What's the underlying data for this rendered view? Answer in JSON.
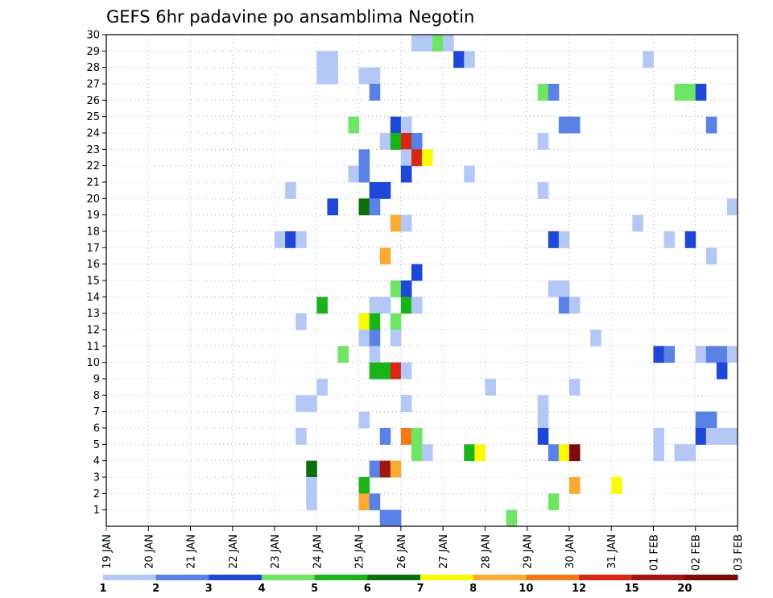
{
  "chart_data": {
    "type": "heatmap",
    "title": "GEFS 6hr padavine po ansamblima Negotin",
    "x_ticks": [
      "19 JAN",
      "20 JAN",
      "21 JAN",
      "22 JAN",
      "23 JAN",
      "24 JAN",
      "25 JAN",
      "26 JAN",
      "27 JAN",
      "28 JAN",
      "29 JAN",
      "30 JAN",
      "31 JAN",
      "01 FEB",
      "02 FEB",
      "03 FEB"
    ],
    "y_ticks": [
      "1",
      "2",
      "3",
      "4",
      "5",
      "6",
      "7",
      "8",
      "9",
      "10",
      "11",
      "12",
      "13",
      "14",
      "15",
      "16",
      "17",
      "18",
      "19",
      "20",
      "21",
      "22",
      "23",
      "24",
      "25",
      "26",
      "27",
      "28",
      "29",
      "30"
    ],
    "x_unit": "6-hour step (0 = 19 JAN 00Z)",
    "y_unit": "ensemble member",
    "xlim": [
      0,
      60
    ],
    "ylim": [
      0,
      30
    ],
    "grid": true,
    "legend": {
      "placement": "bottom",
      "labels": [
        "1",
        "2",
        "3",
        "4",
        "5",
        "6",
        "7",
        "8",
        "10",
        "12",
        "15",
        "20"
      ],
      "colors": [
        "#b4c8f5",
        "#5a82e6",
        "#1e46d7",
        "#6ee664",
        "#19b419",
        "#0a6e0a",
        "#fafa00",
        "#faaa32",
        "#f57814",
        "#d72814",
        "#a01414",
        "#7d0a0a"
      ]
    },
    "cells": [
      {
        "m": 30,
        "t": 29,
        "c": 0
      },
      {
        "m": 30,
        "t": 30,
        "c": 0
      },
      {
        "m": 30,
        "t": 31,
        "c": 3
      },
      {
        "m": 30,
        "t": 32,
        "c": 0
      },
      {
        "m": 29,
        "t": 20,
        "c": 0
      },
      {
        "m": 29,
        "t": 21,
        "c": 0
      },
      {
        "m": 29,
        "t": 33,
        "c": 2
      },
      {
        "m": 29,
        "t": 34,
        "c": 0
      },
      {
        "m": 29,
        "t": 51,
        "c": 0
      },
      {
        "m": 28,
        "t": 20,
        "c": 0
      },
      {
        "m": 28,
        "t": 21,
        "c": 0
      },
      {
        "m": 28,
        "t": 24,
        "c": 0
      },
      {
        "m": 28,
        "t": 25,
        "c": 0
      },
      {
        "m": 27,
        "t": 25,
        "c": 1
      },
      {
        "m": 27,
        "t": 41,
        "c": 3
      },
      {
        "m": 27,
        "t": 42,
        "c": 1
      },
      {
        "m": 27,
        "t": 54,
        "c": 3
      },
      {
        "m": 27,
        "t": 55,
        "c": 3
      },
      {
        "m": 27,
        "t": 56,
        "c": 2
      },
      {
        "m": 25,
        "t": 23,
        "c": 3
      },
      {
        "m": 25,
        "t": 27,
        "c": 2
      },
      {
        "m": 25,
        "t": 28,
        "c": 0
      },
      {
        "m": 25,
        "t": 43,
        "c": 1
      },
      {
        "m": 25,
        "t": 44,
        "c": 1
      },
      {
        "m": 25,
        "t": 57,
        "c": 1
      },
      {
        "m": 24,
        "t": 26,
        "c": 0
      },
      {
        "m": 24,
        "t": 27,
        "c": 4
      },
      {
        "m": 24,
        "t": 28,
        "c": 9
      },
      {
        "m": 24,
        "t": 29,
        "c": 1
      },
      {
        "m": 24,
        "t": 41,
        "c": 0
      },
      {
        "m": 23,
        "t": 24,
        "c": 1
      },
      {
        "m": 23,
        "t": 28,
        "c": 0
      },
      {
        "m": 23,
        "t": 29,
        "c": 9
      },
      {
        "m": 23,
        "t": 30,
        "c": 6
      },
      {
        "m": 22,
        "t": 23,
        "c": 0
      },
      {
        "m": 22,
        "t": 24,
        "c": 1
      },
      {
        "m": 22,
        "t": 28,
        "c": 2
      },
      {
        "m": 22,
        "t": 34,
        "c": 0
      },
      {
        "m": 21,
        "t": 17,
        "c": 0
      },
      {
        "m": 21,
        "t": 25,
        "c": 2
      },
      {
        "m": 21,
        "t": 26,
        "c": 2
      },
      {
        "m": 21,
        "t": 41,
        "c": 0
      },
      {
        "m": 20,
        "t": 21,
        "c": 2
      },
      {
        "m": 20,
        "t": 24,
        "c": 5
      },
      {
        "m": 20,
        "t": 25,
        "c": 1
      },
      {
        "m": 20,
        "t": 59,
        "c": 0
      },
      {
        "m": 19,
        "t": 27,
        "c": 7
      },
      {
        "m": 19,
        "t": 28,
        "c": 0
      },
      {
        "m": 19,
        "t": 50,
        "c": 0
      },
      {
        "m": 18,
        "t": 16,
        "c": 0
      },
      {
        "m": 18,
        "t": 17,
        "c": 2
      },
      {
        "m": 18,
        "t": 18,
        "c": 0
      },
      {
        "m": 18,
        "t": 42,
        "c": 2
      },
      {
        "m": 18,
        "t": 43,
        "c": 0
      },
      {
        "m": 18,
        "t": 53,
        "c": 0
      },
      {
        "m": 18,
        "t": 55,
        "c": 2
      },
      {
        "m": 17,
        "t": 26,
        "c": 7
      },
      {
        "m": 17,
        "t": 57,
        "c": 0
      },
      {
        "m": 16,
        "t": 29,
        "c": 2
      },
      {
        "m": 15,
        "t": 27,
        "c": 3
      },
      {
        "m": 15,
        "t": 28,
        "c": 2
      },
      {
        "m": 15,
        "t": 42,
        "c": 0
      },
      {
        "m": 15,
        "t": 43,
        "c": 0
      },
      {
        "m": 14,
        "t": 20,
        "c": 4
      },
      {
        "m": 14,
        "t": 25,
        "c": 0
      },
      {
        "m": 14,
        "t": 26,
        "c": 0
      },
      {
        "m": 14,
        "t": 28,
        "c": 4
      },
      {
        "m": 14,
        "t": 29,
        "c": 0
      },
      {
        "m": 14,
        "t": 43,
        "c": 1
      },
      {
        "m": 14,
        "t": 44,
        "c": 0
      },
      {
        "m": 13,
        "t": 18,
        "c": 0
      },
      {
        "m": 13,
        "t": 24,
        "c": 6
      },
      {
        "m": 13,
        "t": 25,
        "c": 4
      },
      {
        "m": 13,
        "t": 27,
        "c": 3
      },
      {
        "m": 12,
        "t": 24,
        "c": 0
      },
      {
        "m": 12,
        "t": 25,
        "c": 1
      },
      {
        "m": 12,
        "t": 27,
        "c": 0
      },
      {
        "m": 12,
        "t": 46,
        "c": 0
      },
      {
        "m": 11,
        "t": 22,
        "c": 3
      },
      {
        "m": 11,
        "t": 25,
        "c": 0
      },
      {
        "m": 11,
        "t": 52,
        "c": 2
      },
      {
        "m": 11,
        "t": 53,
        "c": 1
      },
      {
        "m": 11,
        "t": 56,
        "c": 0
      },
      {
        "m": 11,
        "t": 57,
        "c": 1
      },
      {
        "m": 11,
        "t": 58,
        "c": 1
      },
      {
        "m": 11,
        "t": 59,
        "c": 0
      },
      {
        "m": 10,
        "t": 25,
        "c": 4
      },
      {
        "m": 10,
        "t": 26,
        "c": 4
      },
      {
        "m": 10,
        "t": 27,
        "c": 9
      },
      {
        "m": 10,
        "t": 28,
        "c": 0
      },
      {
        "m": 10,
        "t": 58,
        "c": 2
      },
      {
        "m": 9,
        "t": 20,
        "c": 0
      },
      {
        "m": 9,
        "t": 36,
        "c": 0
      },
      {
        "m": 9,
        "t": 44,
        "c": 0
      },
      {
        "m": 8,
        "t": 18,
        "c": 0
      },
      {
        "m": 8,
        "t": 19,
        "c": 0
      },
      {
        "m": 8,
        "t": 28,
        "c": 0
      },
      {
        "m": 8,
        "t": 41,
        "c": 0
      },
      {
        "m": 7,
        "t": 24,
        "c": 0
      },
      {
        "m": 7,
        "t": 41,
        "c": 0
      },
      {
        "m": 7,
        "t": 56,
        "c": 1
      },
      {
        "m": 7,
        "t": 57,
        "c": 1
      },
      {
        "m": 6,
        "t": 18,
        "c": 0
      },
      {
        "m": 6,
        "t": 26,
        "c": 1
      },
      {
        "m": 6,
        "t": 28,
        "c": 8
      },
      {
        "m": 6,
        "t": 29,
        "c": 3
      },
      {
        "m": 6,
        "t": 41,
        "c": 2
      },
      {
        "m": 6,
        "t": 52,
        "c": 0
      },
      {
        "m": 6,
        "t": 56,
        "c": 2
      },
      {
        "m": 6,
        "t": 57,
        "c": 0
      },
      {
        "m": 6,
        "t": 58,
        "c": 0
      },
      {
        "m": 6,
        "t": 59,
        "c": 0
      },
      {
        "m": 5,
        "t": 29,
        "c": 3
      },
      {
        "m": 5,
        "t": 30,
        "c": 0
      },
      {
        "m": 5,
        "t": 34,
        "c": 4
      },
      {
        "m": 5,
        "t": 35,
        "c": 6
      },
      {
        "m": 5,
        "t": 42,
        "c": 1
      },
      {
        "m": 5,
        "t": 43,
        "c": 6
      },
      {
        "m": 5,
        "t": 44,
        "c": 11
      },
      {
        "m": 5,
        "t": 52,
        "c": 0
      },
      {
        "m": 5,
        "t": 54,
        "c": 0
      },
      {
        "m": 5,
        "t": 55,
        "c": 0
      },
      {
        "m": 4,
        "t": 19,
        "c": 5
      },
      {
        "m": 4,
        "t": 25,
        "c": 1
      },
      {
        "m": 4,
        "t": 26,
        "c": 10
      },
      {
        "m": 4,
        "t": 27,
        "c": 7
      },
      {
        "m": 3,
        "t": 19,
        "c": 0
      },
      {
        "m": 3,
        "t": 24,
        "c": 4
      },
      {
        "m": 3,
        "t": 44,
        "c": 7
      },
      {
        "m": 3,
        "t": 48,
        "c": 6
      },
      {
        "m": 2,
        "t": 19,
        "c": 0
      },
      {
        "m": 2,
        "t": 24,
        "c": 7
      },
      {
        "m": 2,
        "t": 25,
        "c": 1
      },
      {
        "m": 2,
        "t": 42,
        "c": 3
      },
      {
        "m": 1,
        "t": 26,
        "c": 1
      },
      {
        "m": 1,
        "t": 27,
        "c": 1
      },
      {
        "m": 1,
        "t": 38,
        "c": 3
      }
    ]
  }
}
